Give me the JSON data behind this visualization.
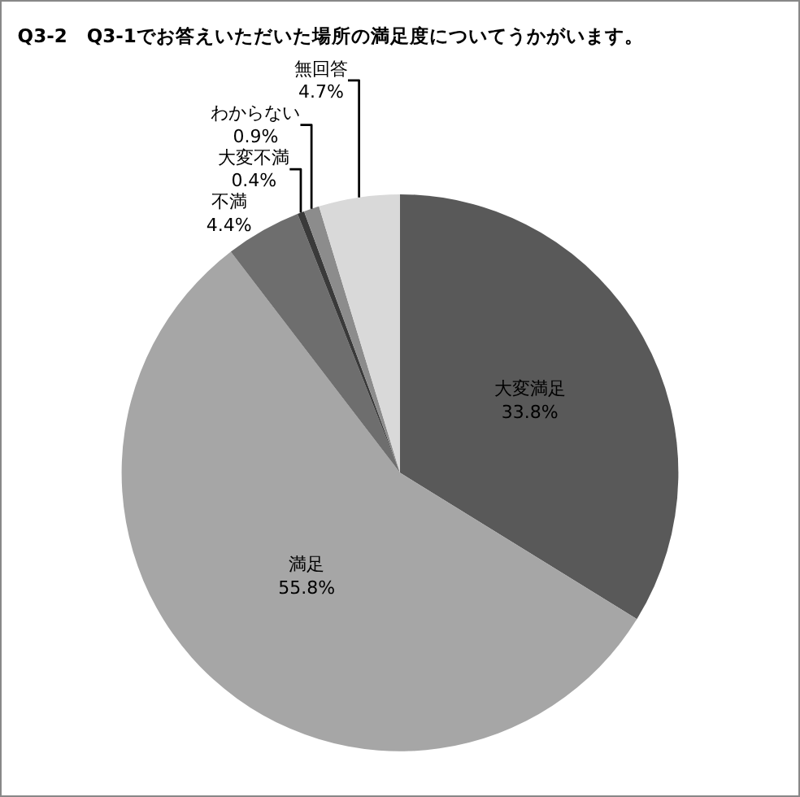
{
  "chart_data": {
    "type": "pie",
    "title": "Q3-2　Q3-1でお答えいただいた場所の満足度についてうかがいます。",
    "categories": [
      "大変満足",
      "満足",
      "不満",
      "大変不満",
      "わからない",
      "無回答"
    ],
    "values": [
      33.8,
      55.8,
      4.4,
      0.4,
      0.9,
      4.7
    ],
    "colors": [
      "#595959",
      "#a6a6a6",
      "#6e6e6e",
      "#3a3a3a",
      "#8c8c8c",
      "#d9d9d9"
    ],
    "value_labels": [
      "33.8%",
      "55.8%",
      "4.4%",
      "0.4%",
      "0.9%",
      "4.7%"
    ],
    "legend": false
  }
}
